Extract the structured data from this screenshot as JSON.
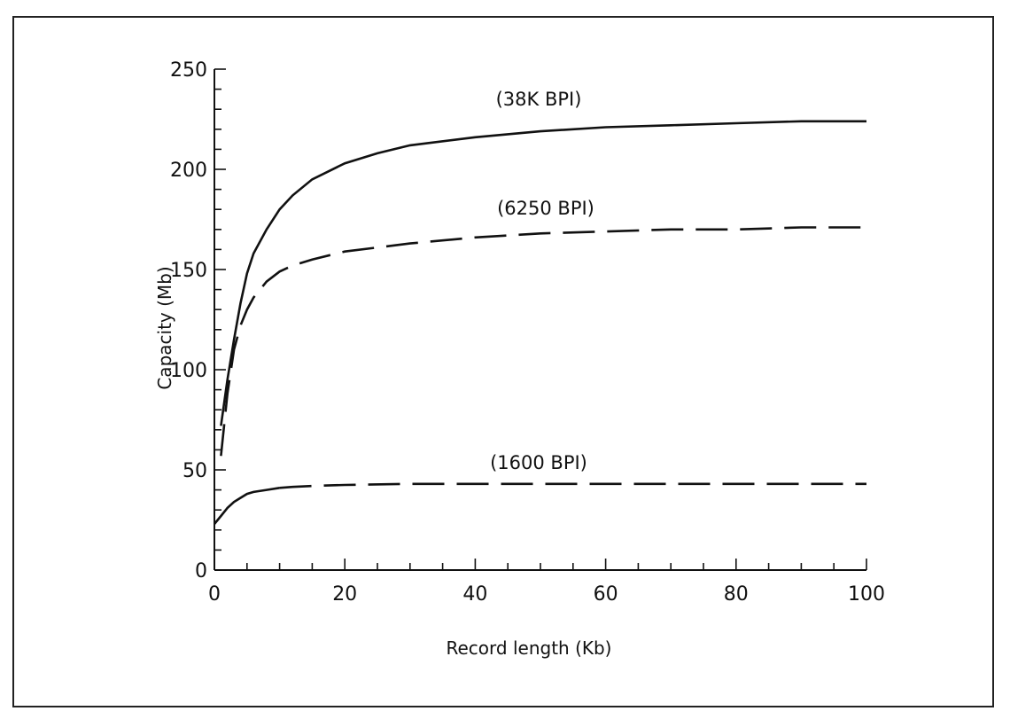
{
  "chart_data": {
    "type": "line",
    "title": "",
    "xlabel": "Record length (Kb)",
    "ylabel": "Capacity (Mb)",
    "xlim": [
      0,
      100
    ],
    "ylim": [
      0,
      250
    ],
    "x_ticks": [
      0,
      20,
      40,
      60,
      80,
      100
    ],
    "y_ticks": [
      0,
      50,
      100,
      150,
      200,
      250
    ],
    "x_tick_labels": [
      "0",
      "20",
      "40",
      "60",
      "80",
      "100"
    ],
    "y_tick_labels": [
      "0",
      "50",
      "100",
      "150",
      "200",
      "250"
    ],
    "grid": false,
    "legend": "none",
    "series": [
      {
        "name": "(38K BPI)",
        "style": "solid",
        "x": [
          1,
          2,
          3,
          4,
          5,
          6,
          8,
          10,
          12,
          15,
          20,
          25,
          30,
          40,
          50,
          60,
          70,
          80,
          90,
          100
        ],
        "y": [
          72,
          95,
          115,
          133,
          148,
          158,
          170,
          180,
          187,
          195,
          203,
          208,
          212,
          216,
          219,
          221,
          222,
          223,
          224,
          224
        ]
      },
      {
        "name": "(6250 BPI)",
        "style": "dashed",
        "x": [
          1,
          2,
          3,
          4,
          5,
          6,
          8,
          10,
          12,
          15,
          20,
          30,
          40,
          50,
          60,
          70,
          80,
          90,
          100
        ],
        "y": [
          57,
          88,
          110,
          122,
          130,
          136,
          144,
          149,
          152,
          155,
          159,
          163,
          166,
          168,
          169,
          170,
          170,
          171,
          171
        ]
      },
      {
        "name": "(1600 BPI)",
        "style": "solid-then-dashed",
        "x": [
          0,
          1,
          2,
          3,
          4,
          5,
          6,
          8,
          10,
          12,
          15,
          20,
          30,
          40,
          50,
          60,
          70,
          80,
          90,
          100
        ],
        "y": [
          23,
          27,
          31,
          34,
          36,
          38,
          39,
          40,
          41,
          41.5,
          42,
          42.5,
          43,
          43,
          43,
          43,
          43,
          43,
          43,
          43
        ]
      }
    ]
  }
}
